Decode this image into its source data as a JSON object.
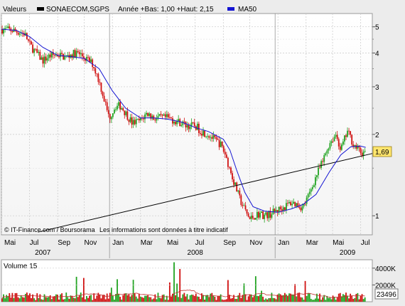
{
  "header": {
    "valeurs_label": "Valeurs",
    "symbol": "SONAECOM,SGPS",
    "year_info": "Année +Bas: 1,00 +Haut: 2,15",
    "ma_label": "MA50"
  },
  "last_price_label": "1,69",
  "credit": "© IT-Finance.com / Boursorama",
  "disclaimer": "Les informations sont données à titre indicatif",
  "volume": {
    "label": "Volume 15",
    "last_value_label": "23496",
    "tick_labels": [
      "4000K",
      "2000K"
    ]
  },
  "colors": {
    "up": "#21a321",
    "down": "#d01010",
    "ma": "#1414d2",
    "trendline": "#000000",
    "price_badge": "#ffe66e",
    "grid": "#c8c8c8"
  },
  "chart_data": {
    "type": "candlestick",
    "title": "SONAECOM,SGPS",
    "scale": "log",
    "ylim": [
      0.85,
      5.6
    ],
    "y_ticks": [
      {
        "value": 5,
        "label": "5"
      },
      {
        "value": 4,
        "label": "4"
      },
      {
        "value": 3,
        "label": "3"
      },
      {
        "value": 2,
        "label": "2"
      },
      {
        "value": 1,
        "label": "1"
      }
    ],
    "x_range": [
      2007.33,
      2009.57
    ],
    "month_ticks": [
      {
        "t": 2007.33,
        "label": "Mai"
      },
      {
        "t": 2007.5,
        "label": "Jul"
      },
      {
        "t": 2007.67,
        "label": "Sep"
      },
      {
        "t": 2007.83,
        "label": "Nov"
      },
      {
        "t": 2008.0,
        "label": "Jan"
      },
      {
        "t": 2008.17,
        "label": "Mar"
      },
      {
        "t": 2008.33,
        "label": "Mai"
      },
      {
        "t": 2008.5,
        "label": "Jul"
      },
      {
        "t": 2008.67,
        "label": "Sep"
      },
      {
        "t": 2008.83,
        "label": "Nov"
      },
      {
        "t": 2009.0,
        "label": "Jan"
      },
      {
        "t": 2009.17,
        "label": "Mar"
      },
      {
        "t": 2009.33,
        "label": "Mai"
      },
      {
        "t": 2009.5,
        "label": "Jul"
      }
    ],
    "year_ticks": [
      {
        "t": 2007.58,
        "label": "2007"
      },
      {
        "t": 2008.5,
        "label": "2008"
      },
      {
        "t": 2009.42,
        "label": "2009"
      }
    ],
    "price_path": [
      [
        2007.33,
        4.9
      ],
      [
        2007.4,
        4.85
      ],
      [
        2007.47,
        4.72
      ],
      [
        2007.5,
        4.3
      ],
      [
        2007.54,
        4.0
      ],
      [
        2007.58,
        3.75
      ],
      [
        2007.62,
        3.9
      ],
      [
        2007.67,
        3.95
      ],
      [
        2007.72,
        3.85
      ],
      [
        2007.75,
        3.95
      ],
      [
        2007.79,
        4.0
      ],
      [
        2007.83,
        3.85
      ],
      [
        2007.88,
        3.65
      ],
      [
        2007.92,
        3.15
      ],
      [
        2007.95,
        2.7
      ],
      [
        2007.98,
        2.3
      ],
      [
        2008.02,
        2.55
      ],
      [
        2008.05,
        2.55
      ],
      [
        2008.08,
        2.4
      ],
      [
        2008.12,
        2.2
      ],
      [
        2008.17,
        2.25
      ],
      [
        2008.21,
        2.4
      ],
      [
        2008.25,
        2.3
      ],
      [
        2008.29,
        2.3
      ],
      [
        2008.33,
        2.3
      ],
      [
        2008.38,
        2.25
      ],
      [
        2008.42,
        2.2
      ],
      [
        2008.46,
        2.15
      ],
      [
        2008.5,
        2.15
      ],
      [
        2008.54,
        2.05
      ],
      [
        2008.58,
        2.0
      ],
      [
        2008.62,
        1.9
      ],
      [
        2008.65,
        1.85
      ],
      [
        2008.68,
        1.7
      ],
      [
        2008.71,
        1.48
      ],
      [
        2008.74,
        1.3
      ],
      [
        2008.77,
        1.15
      ],
      [
        2008.8,
        1.05
      ],
      [
        2008.83,
        0.97
      ],
      [
        2008.86,
        1.0
      ],
      [
        2008.89,
        1.02
      ],
      [
        2008.92,
        1.0
      ],
      [
        2008.96,
        1.02
      ],
      [
        2009.0,
        1.05
      ],
      [
        2009.04,
        1.08
      ],
      [
        2009.08,
        1.12
      ],
      [
        2009.12,
        1.1
      ],
      [
        2009.15,
        1.07
      ],
      [
        2009.19,
        1.2
      ],
      [
        2009.23,
        1.4
      ],
      [
        2009.27,
        1.58
      ],
      [
        2009.31,
        1.85
      ],
      [
        2009.35,
        2.0
      ],
      [
        2009.38,
        1.75
      ],
      [
        2009.42,
        2.05
      ],
      [
        2009.46,
        1.82
      ],
      [
        2009.5,
        1.72
      ],
      [
        2009.53,
        1.69
      ]
    ],
    "ma50_path": [
      [
        2007.33,
        4.9
      ],
      [
        2007.42,
        4.85
      ],
      [
        2007.5,
        4.6
      ],
      [
        2007.58,
        4.2
      ],
      [
        2007.67,
        3.92
      ],
      [
        2007.75,
        3.88
      ],
      [
        2007.83,
        3.82
      ],
      [
        2007.92,
        3.5
      ],
      [
        2008.0,
        2.9
      ],
      [
        2008.08,
        2.5
      ],
      [
        2008.17,
        2.3
      ],
      [
        2008.25,
        2.3
      ],
      [
        2008.33,
        2.28
      ],
      [
        2008.42,
        2.22
      ],
      [
        2008.5,
        2.12
      ],
      [
        2008.58,
        2.05
      ],
      [
        2008.67,
        1.92
      ],
      [
        2008.71,
        1.75
      ],
      [
        2008.75,
        1.48
      ],
      [
        2008.8,
        1.22
      ],
      [
        2008.85,
        1.08
      ],
      [
        2008.92,
        1.04
      ],
      [
        2009.0,
        1.03
      ],
      [
        2009.08,
        1.06
      ],
      [
        2009.15,
        1.1
      ],
      [
        2009.23,
        1.2
      ],
      [
        2009.31,
        1.45
      ],
      [
        2009.38,
        1.68
      ],
      [
        2009.44,
        1.8
      ],
      [
        2009.5,
        1.81
      ],
      [
        2009.53,
        1.79
      ]
    ],
    "trendline": [
      [
        2007.55,
        0.87
      ],
      [
        2009.57,
        1.7
      ]
    ],
    "volume_ylim": [
      0,
      5000000
    ],
    "volume_ticks": [
      4000000,
      2000000
    ]
  }
}
